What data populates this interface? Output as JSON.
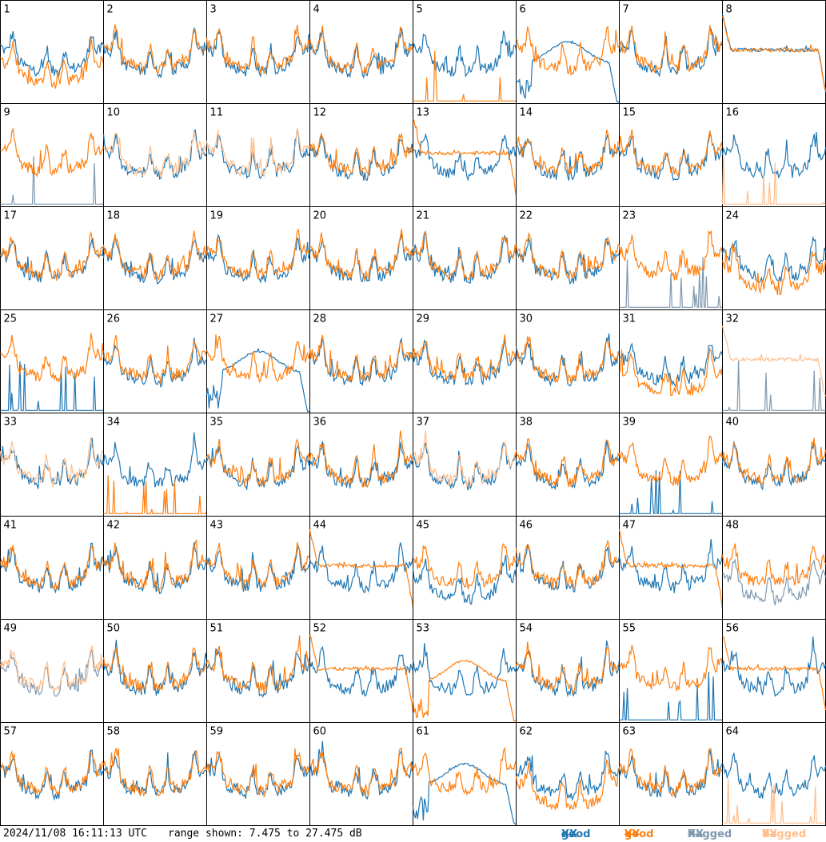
{
  "footer": {
    "timestamp": "2024/11/08 16:11:13 UTC",
    "range_label": "range shown: 7.475 to 27.475 dB"
  },
  "legend": [
    {
      "word": "good",
      "key": "XX",
      "color": "#1f77b4"
    },
    {
      "word": "good",
      "key": "YY",
      "color": "#ff7f0e"
    },
    {
      "word": "flagged",
      "key": "XX",
      "color": "#7f98b0"
    },
    {
      "word": "flagged",
      "key": "YY",
      "color": "#ffbe8c"
    }
  ],
  "colors": {
    "good_xx": "#1f77b4",
    "good_yy": "#ff7f0e",
    "flagged_xx": "#7f98b0",
    "flagged_yy": "#ffbe8c"
  },
  "chart_data": {
    "type": "line",
    "grid": {
      "rows": 8,
      "cols": 8
    },
    "ylim": [
      7.475,
      27.475
    ],
    "y_unit": "dB",
    "panels": [
      {
        "id": "1",
        "xx": "good",
        "yy": "good",
        "xx_shape": "normal",
        "yy_shape": "dip"
      },
      {
        "id": "2",
        "xx": "good",
        "yy": "good",
        "xx_shape": "normal",
        "yy_shape": "normal"
      },
      {
        "id": "3",
        "xx": "good",
        "yy": "good",
        "xx_shape": "normal",
        "yy_shape": "normal"
      },
      {
        "id": "4",
        "xx": "good",
        "yy": "good",
        "xx_shape": "normal",
        "yy_shape": "normal"
      },
      {
        "id": "5",
        "xx": "good",
        "yy": "good",
        "xx_shape": "normal",
        "yy_shape": "spikes"
      },
      {
        "id": "6",
        "xx": "good",
        "yy": "good",
        "xx_shape": "hump",
        "yy_shape": "normal"
      },
      {
        "id": "7",
        "xx": "good",
        "yy": "good",
        "xx_shape": "normal",
        "yy_shape": "normal"
      },
      {
        "id": "8",
        "xx": "good",
        "yy": "good",
        "xx_shape": "flat",
        "yy_shape": "flat"
      },
      {
        "id": "9",
        "xx": "flagged",
        "yy": "good",
        "xx_shape": "spikes",
        "yy_shape": "normal"
      },
      {
        "id": "10",
        "xx": "good",
        "yy": "flagged",
        "xx_shape": "normal",
        "yy_shape": "normal"
      },
      {
        "id": "11",
        "xx": "good",
        "yy": "flagged",
        "xx_shape": "normal",
        "yy_shape": "normal"
      },
      {
        "id": "12",
        "xx": "good",
        "yy": "good",
        "xx_shape": "normal",
        "yy_shape": "normal"
      },
      {
        "id": "13",
        "xx": "good",
        "yy": "good",
        "xx_shape": "normal",
        "yy_shape": "flat"
      },
      {
        "id": "14",
        "xx": "good",
        "yy": "good",
        "xx_shape": "normal",
        "yy_shape": "normal"
      },
      {
        "id": "15",
        "xx": "good",
        "yy": "good",
        "xx_shape": "normal",
        "yy_shape": "normal"
      },
      {
        "id": "16",
        "xx": "good",
        "yy": "flagged",
        "xx_shape": "normal",
        "yy_shape": "spikes"
      },
      {
        "id": "17",
        "xx": "good",
        "yy": "good",
        "xx_shape": "normal",
        "yy_shape": "normal"
      },
      {
        "id": "18",
        "xx": "good",
        "yy": "good",
        "xx_shape": "normal",
        "yy_shape": "normal"
      },
      {
        "id": "19",
        "xx": "good",
        "yy": "good",
        "xx_shape": "normal",
        "yy_shape": "normal"
      },
      {
        "id": "20",
        "xx": "good",
        "yy": "good",
        "xx_shape": "normal",
        "yy_shape": "normal"
      },
      {
        "id": "21",
        "xx": "good",
        "yy": "good",
        "xx_shape": "normal",
        "yy_shape": "normal"
      },
      {
        "id": "22",
        "xx": "good",
        "yy": "good",
        "xx_shape": "normal",
        "yy_shape": "normal"
      },
      {
        "id": "23",
        "xx": "flagged",
        "yy": "good",
        "xx_shape": "spikes",
        "yy_shape": "normal"
      },
      {
        "id": "24",
        "xx": "good",
        "yy": "good",
        "xx_shape": "normal",
        "yy_shape": "dip"
      },
      {
        "id": "25",
        "xx": "good",
        "yy": "good",
        "xx_shape": "spikes",
        "yy_shape": "normal"
      },
      {
        "id": "26",
        "xx": "good",
        "yy": "good",
        "xx_shape": "normal",
        "yy_shape": "normal"
      },
      {
        "id": "27",
        "xx": "good",
        "yy": "good",
        "xx_shape": "hump",
        "yy_shape": "normal"
      },
      {
        "id": "28",
        "xx": "good",
        "yy": "good",
        "xx_shape": "normal",
        "yy_shape": "normal"
      },
      {
        "id": "29",
        "xx": "good",
        "yy": "good",
        "xx_shape": "normal",
        "yy_shape": "normal"
      },
      {
        "id": "30",
        "xx": "good",
        "yy": "good",
        "xx_shape": "normal",
        "yy_shape": "normal"
      },
      {
        "id": "31",
        "xx": "good",
        "yy": "good",
        "xx_shape": "normal",
        "yy_shape": "dip"
      },
      {
        "id": "32",
        "xx": "flagged",
        "yy": "flagged",
        "xx_shape": "spikes",
        "yy_shape": "flat"
      },
      {
        "id": "33",
        "xx": "good",
        "yy": "flagged",
        "xx_shape": "normal",
        "yy_shape": "normal"
      },
      {
        "id": "34",
        "xx": "good",
        "yy": "good",
        "xx_shape": "normal",
        "yy_shape": "spikes"
      },
      {
        "id": "35",
        "xx": "good",
        "yy": "good",
        "xx_shape": "normal",
        "yy_shape": "normal"
      },
      {
        "id": "36",
        "xx": "good",
        "yy": "good",
        "xx_shape": "normal",
        "yy_shape": "normal"
      },
      {
        "id": "37",
        "xx": "good",
        "yy": "flagged",
        "xx_shape": "normal",
        "yy_shape": "normal"
      },
      {
        "id": "38",
        "xx": "good",
        "yy": "good",
        "xx_shape": "normal",
        "yy_shape": "normal"
      },
      {
        "id": "39",
        "xx": "good",
        "yy": "good",
        "xx_shape": "spikes",
        "yy_shape": "normal"
      },
      {
        "id": "40",
        "xx": "good",
        "yy": "good",
        "xx_shape": "normal",
        "yy_shape": "normal"
      },
      {
        "id": "41",
        "xx": "good",
        "yy": "good",
        "xx_shape": "normal",
        "yy_shape": "normal"
      },
      {
        "id": "42",
        "xx": "good",
        "yy": "good",
        "xx_shape": "normal",
        "yy_shape": "normal"
      },
      {
        "id": "43",
        "xx": "good",
        "yy": "good",
        "xx_shape": "normal",
        "yy_shape": "normal"
      },
      {
        "id": "44",
        "xx": "good",
        "yy": "good",
        "xx_shape": "normal",
        "yy_shape": "flat"
      },
      {
        "id": "45",
        "xx": "good",
        "yy": "good",
        "xx_shape": "dip",
        "yy_shape": "normal"
      },
      {
        "id": "46",
        "xx": "good",
        "yy": "good",
        "xx_shape": "normal",
        "yy_shape": "normal"
      },
      {
        "id": "47",
        "xx": "good",
        "yy": "good",
        "xx_shape": "normal",
        "yy_shape": "flat"
      },
      {
        "id": "48",
        "xx": "flagged",
        "yy": "good",
        "xx_shape": "dip",
        "yy_shape": "normal"
      },
      {
        "id": "49",
        "xx": "flagged",
        "yy": "flagged",
        "xx_shape": "normal",
        "yy_shape": "normal"
      },
      {
        "id": "50",
        "xx": "good",
        "yy": "good",
        "xx_shape": "normal",
        "yy_shape": "normal"
      },
      {
        "id": "51",
        "xx": "good",
        "yy": "good",
        "xx_shape": "normal",
        "yy_shape": "normal"
      },
      {
        "id": "52",
        "xx": "good",
        "yy": "good",
        "xx_shape": "normal",
        "yy_shape": "flat"
      },
      {
        "id": "53",
        "xx": "good",
        "yy": "good",
        "xx_shape": "normal",
        "yy_shape": "hump"
      },
      {
        "id": "54",
        "xx": "good",
        "yy": "good",
        "xx_shape": "normal",
        "yy_shape": "normal"
      },
      {
        "id": "55",
        "xx": "good",
        "yy": "good",
        "xx_shape": "spikes",
        "yy_shape": "normal"
      },
      {
        "id": "56",
        "xx": "good",
        "yy": "good",
        "xx_shape": "normal",
        "yy_shape": "flat"
      },
      {
        "id": "57",
        "xx": "good",
        "yy": "good",
        "xx_shape": "normal",
        "yy_shape": "normal"
      },
      {
        "id": "58",
        "xx": "good",
        "yy": "good",
        "xx_shape": "normal",
        "yy_shape": "normal"
      },
      {
        "id": "59",
        "xx": "good",
        "yy": "good",
        "xx_shape": "normal",
        "yy_shape": "normal"
      },
      {
        "id": "60",
        "xx": "good",
        "yy": "good",
        "xx_shape": "normal",
        "yy_shape": "normal"
      },
      {
        "id": "61",
        "xx": "good",
        "yy": "good",
        "xx_shape": "hump",
        "yy_shape": "normal"
      },
      {
        "id": "62",
        "xx": "good",
        "yy": "good",
        "xx_shape": "normal",
        "yy_shape": "dip"
      },
      {
        "id": "63",
        "xx": "good",
        "yy": "good",
        "xx_shape": "normal",
        "yy_shape": "normal"
      },
      {
        "id": "64",
        "xx": "good",
        "yy": "flagged",
        "xx_shape": "normal",
        "yy_shape": "spikes"
      }
    ]
  }
}
